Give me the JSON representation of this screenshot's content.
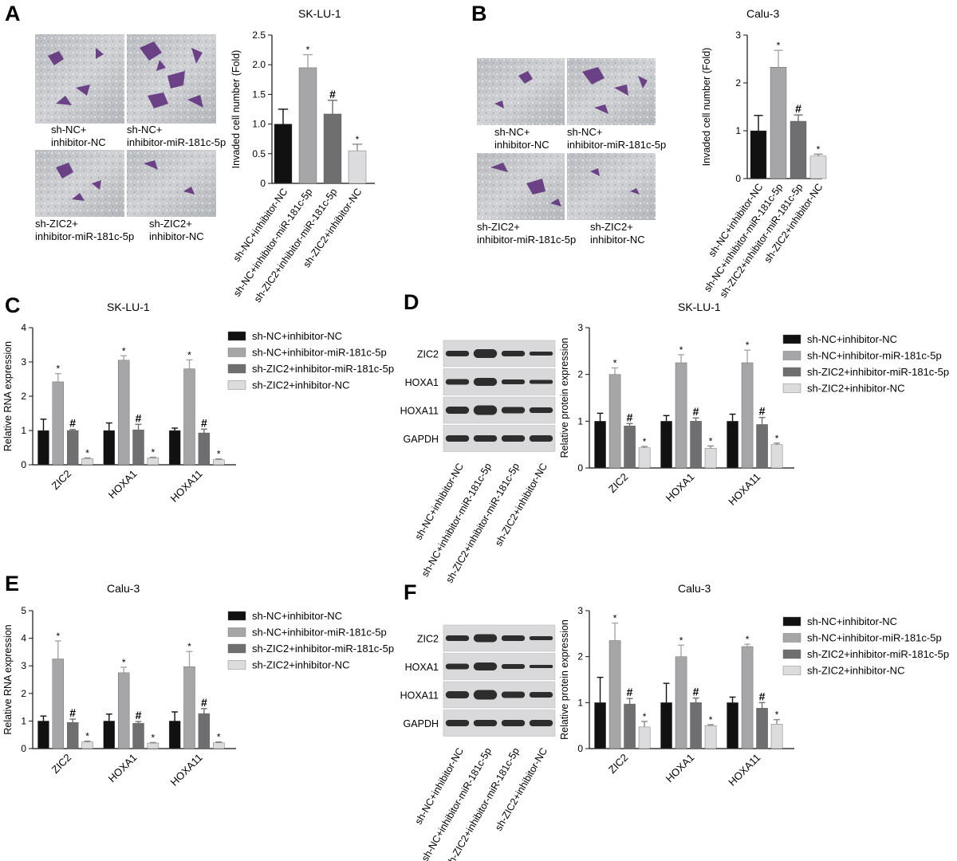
{
  "colors": [
    "#111111",
    "#a6a6a8",
    "#6f6f71",
    "#dcdcde"
  ],
  "groups": [
    "sh-NC+inhibitor-NC",
    "sh-NC+inhibitor-miR-181c-5p",
    "sh-ZIC2+inhibitor-miR-181c-5p",
    "sh-ZIC2+inhibitor-NC"
  ],
  "proteins": [
    "ZIC2",
    "HOXA1",
    "HOXA11",
    "GAPDH"
  ],
  "panels": {
    "A": {
      "label": "A",
      "captions": [
        [
          "sh-NC+",
          "inhibitor-NC"
        ],
        [
          "sh-NC+",
          "inhibitor-miR-181c-5p"
        ],
        [
          "sh-ZIC2+",
          "inhibitor-miR-181c-5p"
        ],
        [
          "sh-ZIC2+",
          "inhibitor-NC"
        ]
      ]
    },
    "B": {
      "label": "B",
      "captions": [
        [
          "sh-NC+",
          "inhibitor-NC"
        ],
        [
          "sh-NC+",
          "inhibitor-miR-181c-5p"
        ],
        [
          "sh-ZIC2+",
          "inhibitor-miR-181c-5p"
        ],
        [
          "sh-ZIC2+",
          "inhibitor-NC"
        ]
      ]
    },
    "C": {
      "label": "C"
    },
    "D": {
      "label": "D"
    },
    "E": {
      "label": "E"
    },
    "F": {
      "label": "F"
    }
  },
  "chart_data": [
    {
      "id": "A",
      "type": "bar",
      "title": "SK-LU-1",
      "ylabel": "Invaded cell number (Fold)",
      "ylim": [
        0,
        2.5
      ],
      "yticks": [
        0,
        0.5,
        1.0,
        1.5,
        2.0,
        2.5
      ],
      "categories": [
        "sh-NC+inhibitor-NC",
        "sh-NC+inhibitor-miR-181c-5p",
        "sh-ZIC2+inhibitor-miR-181c-5p",
        "sh-ZIC2+inhibitor-NC"
      ],
      "values": [
        1.0,
        1.95,
        1.17,
        0.55
      ],
      "errors": [
        0.25,
        0.22,
        0.23,
        0.11
      ],
      "marks": [
        "",
        "*",
        "#",
        "*"
      ]
    },
    {
      "id": "B",
      "type": "bar",
      "title": "Calu-3",
      "ylabel": "Invaded cell number (Fold)",
      "ylim": [
        0,
        3
      ],
      "yticks": [
        0,
        1,
        2,
        3
      ],
      "categories": [
        "sh-NC+inhibitor-NC",
        "sh-NC+inhibitor-miR-181c-5p",
        "sh-ZIC2+inhibitor-miR-181c-5p",
        "sh-ZIC2+inhibitor-NC"
      ],
      "values": [
        1.0,
        2.33,
        1.2,
        0.47
      ],
      "errors": [
        0.32,
        0.35,
        0.13,
        0.04
      ],
      "marks": [
        "",
        "*",
        "#",
        "*"
      ]
    },
    {
      "id": "C",
      "type": "bar",
      "title": "SK-LU-1",
      "ylabel": "Relative RNA expression",
      "ylim": [
        0,
        4
      ],
      "yticks": [
        0,
        1,
        2,
        3,
        4
      ],
      "categories": [
        "ZIC2",
        "HOXA1",
        "HOXA11"
      ],
      "series": [
        {
          "name": "sh-NC+inhibitor-NC",
          "values": [
            1.0,
            1.0,
            1.0
          ],
          "errors": [
            0.33,
            0.22,
            0.07
          ],
          "marks": [
            "",
            "",
            ""
          ]
        },
        {
          "name": "sh-NC+inhibitor-miR-181c-5p",
          "values": [
            2.42,
            3.05,
            2.8
          ],
          "errors": [
            0.24,
            0.13,
            0.26
          ],
          "marks": [
            "*",
            "*",
            "*"
          ]
        },
        {
          "name": "sh-ZIC2+inhibitor-miR-181c-5p",
          "values": [
            1.0,
            1.02,
            0.93
          ],
          "errors": [
            0.03,
            0.16,
            0.11
          ],
          "marks": [
            "#",
            "#",
            "#"
          ]
        },
        {
          "name": "sh-ZIC2+inhibitor-NC",
          "values": [
            0.18,
            0.2,
            0.15
          ],
          "errors": [
            0.02,
            0.02,
            0.02
          ],
          "marks": [
            "*",
            "*",
            "*"
          ]
        }
      ]
    },
    {
      "id": "D",
      "type": "bar",
      "title": "SK-LU-1",
      "ylabel": "Relative protein expression",
      "ylim": [
        0,
        3
      ],
      "yticks": [
        0,
        1,
        2,
        3
      ],
      "categories": [
        "ZIC2",
        "HOXA1",
        "HOXA11"
      ],
      "series": [
        {
          "name": "sh-NC+inhibitor-NC",
          "values": [
            1.0,
            1.0,
            1.0
          ],
          "errors": [
            0.17,
            0.12,
            0.15
          ],
          "marks": [
            "",
            "",
            ""
          ]
        },
        {
          "name": "sh-NC+inhibitor-miR-181c-5p",
          "values": [
            2.0,
            2.25,
            2.25
          ],
          "errors": [
            0.14,
            0.17,
            0.27
          ],
          "marks": [
            "*",
            "*",
            "*"
          ]
        },
        {
          "name": "sh-ZIC2+inhibitor-miR-181c-5p",
          "values": [
            0.9,
            1.0,
            0.93
          ],
          "errors": [
            0.05,
            0.07,
            0.15
          ],
          "marks": [
            "#",
            "#",
            "#"
          ]
        },
        {
          "name": "sh-ZIC2+inhibitor-NC",
          "values": [
            0.43,
            0.42,
            0.5
          ],
          "errors": [
            0.03,
            0.05,
            0.03
          ],
          "marks": [
            "*",
            "*",
            "*"
          ]
        }
      ]
    },
    {
      "id": "E",
      "type": "bar",
      "title": "Calu-3",
      "ylabel": "Relative RNA expression",
      "ylim": [
        0,
        5
      ],
      "yticks": [
        0,
        1,
        2,
        3,
        4,
        5
      ],
      "categories": [
        "ZIC2",
        "HOXA1",
        "HOXA11"
      ],
      "series": [
        {
          "name": "sh-NC+inhibitor-NC",
          "values": [
            1.0,
            1.0,
            1.0
          ],
          "errors": [
            0.18,
            0.25,
            0.33
          ],
          "marks": [
            "",
            "",
            ""
          ]
        },
        {
          "name": "sh-NC+inhibitor-miR-181c-5p",
          "values": [
            3.25,
            2.75,
            2.97
          ],
          "errors": [
            0.65,
            0.2,
            0.55
          ],
          "marks": [
            "*",
            "*",
            "*"
          ]
        },
        {
          "name": "sh-ZIC2+inhibitor-miR-181c-5p",
          "values": [
            0.95,
            0.92,
            1.27
          ],
          "errors": [
            0.12,
            0.06,
            0.18
          ],
          "marks": [
            "#",
            "#",
            "#"
          ]
        },
        {
          "name": "sh-ZIC2+inhibitor-NC",
          "values": [
            0.24,
            0.2,
            0.21
          ],
          "errors": [
            0.03,
            0.02,
            0.03
          ],
          "marks": [
            "*",
            "*",
            "*"
          ]
        }
      ]
    },
    {
      "id": "F",
      "type": "bar",
      "title": "Calu-3",
      "ylabel": "Relative protein expression",
      "ylim": [
        0,
        3
      ],
      "yticks": [
        0,
        1,
        2,
        3
      ],
      "categories": [
        "ZIC2",
        "HOXA1",
        "HOXA11"
      ],
      "series": [
        {
          "name": "sh-NC+inhibitor-NC",
          "values": [
            1.0,
            1.0,
            1.0
          ],
          "errors": [
            0.55,
            0.42,
            0.12
          ],
          "marks": [
            "",
            "",
            ""
          ]
        },
        {
          "name": "sh-NC+inhibitor-miR-181c-5p",
          "values": [
            2.35,
            2.0,
            2.22
          ],
          "errors": [
            0.38,
            0.25,
            0.05
          ],
          "marks": [
            "*",
            "*",
            "*"
          ]
        },
        {
          "name": "sh-ZIC2+inhibitor-miR-181c-5p",
          "values": [
            0.97,
            1.0,
            0.88
          ],
          "errors": [
            0.12,
            0.1,
            0.12
          ],
          "marks": [
            "#",
            "#",
            "#"
          ]
        },
        {
          "name": "sh-ZIC2+inhibitor-NC",
          "values": [
            0.47,
            0.5,
            0.53
          ],
          "errors": [
            0.12,
            0.02,
            0.1
          ],
          "marks": [
            "*",
            "*",
            "*"
          ]
        }
      ]
    }
  ]
}
